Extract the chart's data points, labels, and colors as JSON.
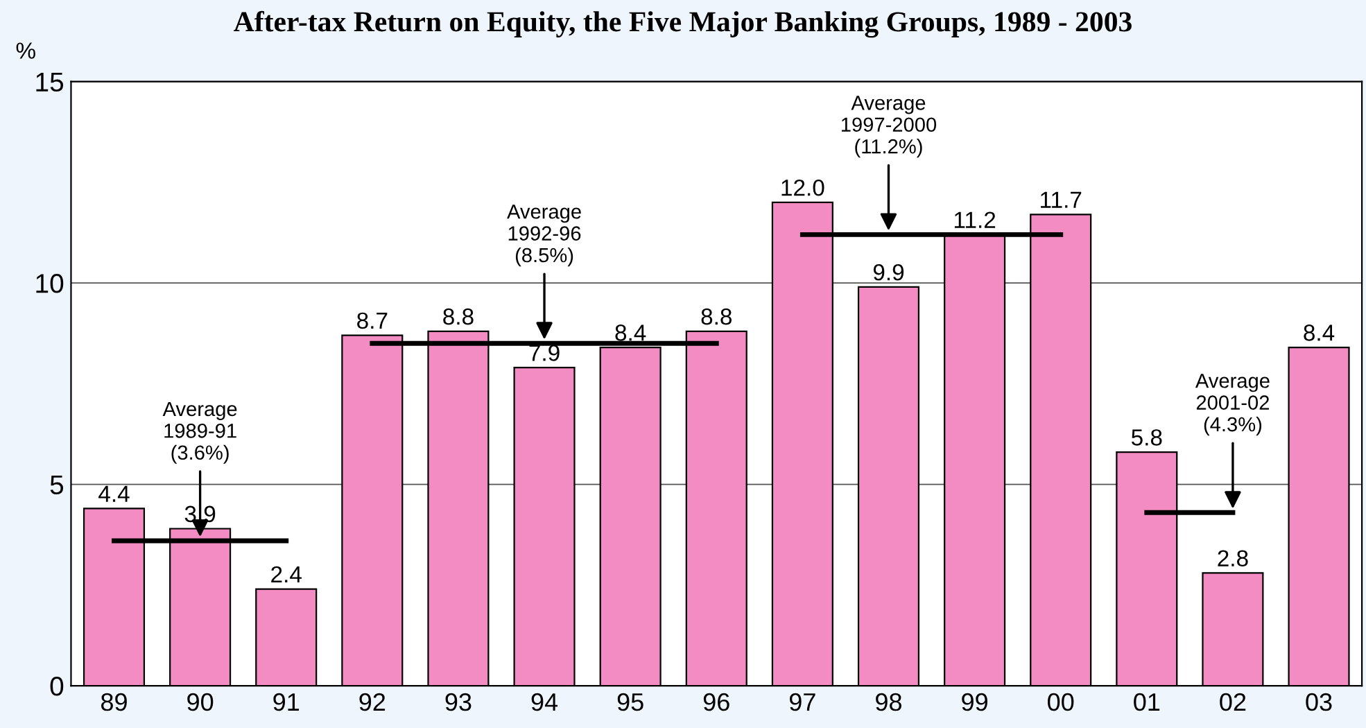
{
  "chart_data": {
    "type": "bar",
    "title": "After-tax Return on Equity, the Five Major Banking Groups, 1989 - 2003",
    "ylabel": "%",
    "categories": [
      "89",
      "90",
      "91",
      "92",
      "93",
      "94",
      "95",
      "96",
      "97",
      "98",
      "99",
      "00",
      "01",
      "02",
      "03"
    ],
    "series": [
      {
        "color": "#f28cc2",
        "values": [
          4.4,
          3.9,
          2.4,
          8.7,
          8.8,
          7.9,
          8.4,
          8.8,
          12.0,
          9.9,
          11.2,
          11.7,
          5.8,
          2.8,
          8.4
        ],
        "value_labels": [
          "4.4",
          "3.9",
          "2.4",
          "8.7",
          "8.8",
          "7.9",
          "8.4",
          "8.8",
          "12.0",
          "9.9",
          "11.2",
          "11.7",
          "5.8",
          "2.8",
          "8.4"
        ]
      },
      {
        "type": "line",
        "color": "#000000",
        "values": [
          3.6,
          3.6,
          3.6,
          null,
          null,
          null,
          null,
          null,
          null,
          null,
          null,
          null,
          null,
          null,
          null
        ]
      },
      {
        "type": "line",
        "color": "#000000",
        "values": [
          null,
          null,
          null,
          8.5,
          8.5,
          8.5,
          8.5,
          8.5,
          null,
          null,
          null,
          null,
          null,
          null,
          null
        ]
      },
      {
        "type": "line",
        "color": "#000000",
        "values": [
          null,
          null,
          null,
          null,
          null,
          null,
          null,
          null,
          11.2,
          11.2,
          11.2,
          11.2,
          null,
          null,
          null
        ]
      },
      {
        "type": "line",
        "color": "#000000",
        "values": [
          null,
          null,
          null,
          null,
          null,
          null,
          null,
          null,
          null,
          null,
          null,
          null,
          4.3,
          4.3,
          null
        ]
      }
    ],
    "annotations": [
      {
        "text": "Average\n1989-91\n(3.6%)",
        "x": "90",
        "y": 3.6
      },
      {
        "text": "Average\n1992-96\n(8.5%)",
        "x": "94",
        "y": 8.5
      },
      {
        "text": "Average\n1997-2000\n(11.2%)",
        "x": "98",
        "y": 11.2
      },
      {
        "text": "Average\n2001-02\n(4.3%)",
        "x": "02",
        "y": 4.3
      }
    ],
    "ylim": [
      0,
      15
    ],
    "yticks": [
      0,
      5,
      10,
      15
    ],
    "grid": "y"
  }
}
